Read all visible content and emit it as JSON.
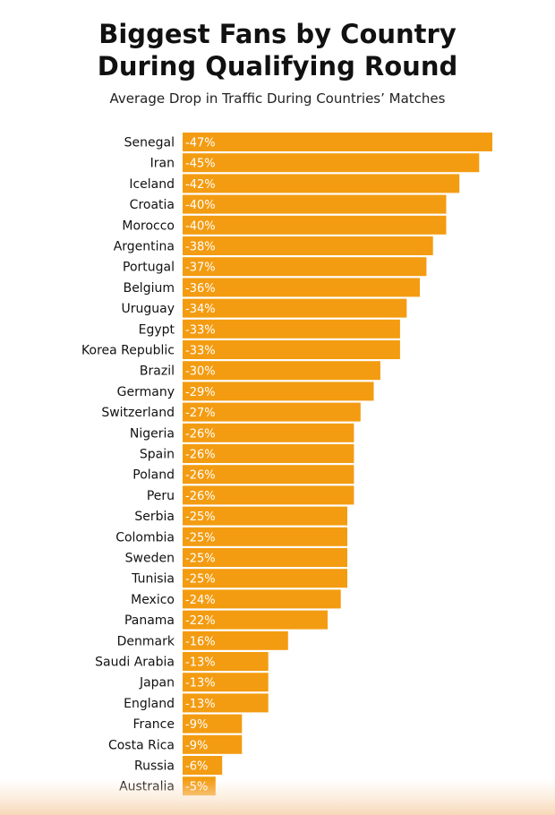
{
  "chart_data": {
    "type": "bar",
    "orientation": "horizontal",
    "title": "Biggest Fans by Country\nDuring Qualifying Round",
    "title_lines": [
      "Biggest Fans by Country",
      "During Qualifying Round"
    ],
    "subtitle": "Average Drop in Traffic During Countries’ Matches",
    "xlabel": "",
    "ylabel": "",
    "unit": "%",
    "bar_color": "#F39C12",
    "label_color": "#ffffff",
    "xlim": [
      0,
      -47
    ],
    "categories": [
      "Senegal",
      "Iran",
      "Iceland",
      "Croatia",
      "Morocco",
      "Argentina",
      "Portugal",
      "Belgium",
      "Uruguay",
      "Egypt",
      "Korea Republic",
      "Brazil",
      "Germany",
      "Switzerland",
      "Nigeria",
      "Spain",
      "Poland",
      "Peru",
      "Serbia",
      "Colombia",
      "Sweden",
      "Tunisia",
      "Mexico",
      "Panama",
      "Denmark",
      "Saudi Arabia",
      "Japan",
      "England",
      "France",
      "Costa Rica",
      "Russia",
      "Australia"
    ],
    "values": [
      -47,
      -45,
      -42,
      -40,
      -40,
      -38,
      -37,
      -36,
      -34,
      -33,
      -33,
      -30,
      -29,
      -27,
      -26,
      -26,
      -26,
      -26,
      -25,
      -25,
      -25,
      -25,
      -24,
      -22,
      -16,
      -13,
      -13,
      -13,
      -9,
      -9,
      -6,
      -5
    ],
    "data_labels": [
      "-47%",
      "-45%",
      "-42%",
      "-40%",
      "-40%",
      "-38%",
      "-37%",
      "-36%",
      "-34%",
      "-33%",
      "-33%",
      "-30%",
      "-29%",
      "-27%",
      "-26%",
      "-26%",
      "-26%",
      "-26%",
      "-25%",
      "-25%",
      "-25%",
      "-25%",
      "-24%",
      "-22%",
      "-16%",
      "-13%",
      "-13%",
      "-13%",
      "-9%",
      "-9%",
      "-6%",
      "-5%"
    ]
  }
}
